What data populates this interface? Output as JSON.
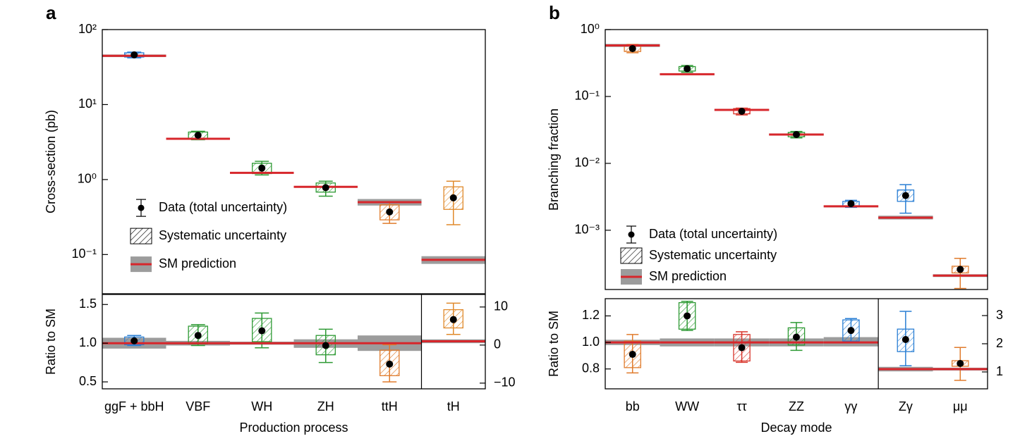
{
  "chart_data": [
    {
      "type": "errorbox",
      "panel": "a",
      "ylabel": "Cross-section (pb)",
      "log_scale": true,
      "ylim": [
        0.03,
        100
      ],
      "yticks": [
        {
          "value": 100,
          "label": "10²"
        },
        {
          "value": 10,
          "label": "10¹"
        },
        {
          "value": 1,
          "label": "10⁰"
        },
        {
          "value": 0.1,
          "label": "10⁻¹"
        }
      ],
      "legend": "center left",
      "category_colors": [
        "#2a7fd4",
        "#2e9a34",
        "#2e9a34",
        "#2e9a34",
        "#e07b2c",
        "#e08a2c"
      ],
      "series": [
        {
          "name": "Data (total uncertainty)",
          "color": "#000000",
          "values": [
            46,
            3.9,
            1.42,
            0.78,
            0.37,
            0.57
          ],
          "low": [
            42,
            3.4,
            1.15,
            0.6,
            0.26,
            0.25
          ],
          "high": [
            50,
            4.4,
            1.75,
            0.95,
            0.5,
            0.95
          ]
        },
        {
          "name": "Systematic uncertainty",
          "low": [
            43,
            3.5,
            1.2,
            0.68,
            0.29,
            0.4
          ],
          "high": [
            49,
            4.3,
            1.65,
            0.9,
            0.46,
            0.8
          ]
        },
        {
          "name": "SM prediction",
          "color": "#d7262b",
          "band_color": "#9c9c9c",
          "values": [
            44.7,
            3.5,
            1.23,
            0.8,
            0.5,
            0.085
          ],
          "low": [
            43,
            3.4,
            1.2,
            0.78,
            0.45,
            0.075
          ],
          "high": [
            46.5,
            3.6,
            1.26,
            0.82,
            0.55,
            0.095
          ]
        }
      ]
    },
    {
      "type": "errorbox",
      "ylabel": "Ratio to SM",
      "xlabel": "Production process",
      "categories": [
        "ggF + bbH",
        "VBF",
        "WH",
        "ZH",
        "ttH",
        "tH"
      ],
      "category_axis": [
        "y",
        "y",
        "y",
        "y",
        "y",
        "y2"
      ],
      "ylim": [
        0.41,
        1.63
      ],
      "yticks": [
        0.5,
        {
          "value": 1,
          "label": "1.0"
        },
        1.5
      ],
      "y2lim": [
        -11.5,
        13.3
      ],
      "y2ticks": [
        {
          "value": -10,
          "label": "−10"
        },
        0,
        10
      ],
      "category_colors": [
        "#2a7fd4",
        "#2e9a34",
        "#2e9a34",
        "#2e9a34",
        "#e07b2c",
        "#e08a2c"
      ],
      "series": [
        {
          "color": "#000000",
          "values": [
            1.03,
            1.1,
            1.16,
            0.97,
            0.73,
            6.7
          ],
          "low": [
            0.97,
            0.97,
            0.94,
            0.75,
            0.5,
            2.8
          ],
          "high": [
            1.1,
            1.24,
            1.39,
            1.18,
            0.98,
            11
          ]
        },
        {
          "low": [
            0.98,
            0.99,
            1.02,
            0.85,
            0.58,
            4.5
          ],
          "high": [
            1.08,
            1.22,
            1.32,
            1.1,
            0.91,
            9.3
          ]
        },
        {
          "color": "#d7262b",
          "band_color": "#9c9c9c",
          "values": [
            1,
            1,
            1,
            1,
            1,
            1
          ],
          "low": [
            0.93,
            0.97,
            0.98,
            0.94,
            0.9,
            0.5
          ],
          "high": [
            1.07,
            1.03,
            1.02,
            1.05,
            1.1,
            1.5
          ]
        }
      ]
    },
    {
      "type": "errorbox",
      "panel": "b",
      "ylabel": "Branching fraction",
      "log_scale": true,
      "ylim": [
        0.00013,
        1
      ],
      "yticks": [
        {
          "value": 1,
          "label": "10⁰"
        },
        {
          "value": 0.1,
          "label": "10⁻¹"
        },
        {
          "value": 0.01,
          "label": "10⁻²"
        },
        {
          "value": 0.001,
          "label": "10⁻³"
        }
      ],
      "legend": "lower left",
      "category_colors": [
        "#e07b2c",
        "#2e9a34",
        "#d8352b",
        "#2e9a34",
        "#2a7fd4",
        "#2a7fd4",
        "#e07b2c"
      ],
      "series": [
        {
          "name": "Data (total uncertainty)",
          "color": "#000000",
          "values": [
            0.52,
            0.26,
            0.06,
            0.027,
            0.0025,
            0.0033,
            0.00026
          ],
          "low": [
            0.45,
            0.23,
            0.053,
            0.024,
            0.0022,
            0.0018,
            0.000135
          ],
          "high": [
            0.6,
            0.29,
            0.067,
            0.03,
            0.0028,
            0.0048,
            0.00038
          ]
        },
        {
          "name": "Systematic uncertainty",
          "low": [
            0.47,
            0.24,
            0.055,
            0.025,
            0.0023,
            0.0027,
            0.00023
          ],
          "high": [
            0.59,
            0.28,
            0.066,
            0.029,
            0.0027,
            0.004,
            0.00029
          ]
        },
        {
          "name": "SM prediction",
          "color": "#d7262b",
          "band_color": "#9c9c9c",
          "values": [
            0.58,
            0.215,
            0.063,
            0.027,
            0.00228,
            0.00154,
            0.00021
          ],
          "low": [
            0.55,
            0.21,
            0.061,
            0.026,
            0.0022,
            0.00145,
            0.0002
          ],
          "high": [
            0.61,
            0.22,
            0.065,
            0.028,
            0.00235,
            0.00165,
            0.00022
          ]
        }
      ]
    },
    {
      "type": "errorbox",
      "ylabel": "Ratio to SM",
      "xlabel": "Decay mode",
      "categories": [
        "bb",
        "WW",
        "ττ",
        "ZZ",
        "γγ",
        "Zγ",
        "μμ"
      ],
      "category_axis": [
        "y",
        "y",
        "y",
        "y",
        "y",
        "y2",
        "y2"
      ],
      "ylim": [
        0.65,
        1.33
      ],
      "yticks": [
        0.8,
        {
          "value": 1,
          "label": "1.0"
        },
        1.2
      ],
      "y2lim": [
        0.4,
        3.6
      ],
      "y2ticks": [
        1,
        2,
        3
      ],
      "category_colors": [
        "#e07b2c",
        "#2e9a34",
        "#d8352b",
        "#2e9a34",
        "#2a7fd4",
        "#2a7fd4",
        "#e07b2c"
      ],
      "series": [
        {
          "color": "#000000",
          "values": [
            0.91,
            1.2,
            0.96,
            1.04,
            1.09,
            2.15,
            1.3
          ],
          "low": [
            0.77,
            1.09,
            0.85,
            0.94,
            1.0,
            1.22,
            0.7
          ],
          "high": [
            1.06,
            1.31,
            1.08,
            1.15,
            1.18,
            3.15,
            1.87
          ]
        },
        {
          "low": [
            0.81,
            1.1,
            0.86,
            0.98,
            1.01,
            1.72,
            1.2
          ],
          "high": [
            1.01,
            1.3,
            1.06,
            1.11,
            1.17,
            2.52,
            1.4
          ]
        },
        {
          "color": "#d7262b",
          "band_color": "#9c9c9c",
          "values": [
            1,
            1,
            1,
            1,
            1,
            1.1,
            1.1
          ],
          "low": [
            0.98,
            0.97,
            0.97,
            0.97,
            0.97,
            1.02,
            1.05
          ],
          "high": [
            1.02,
            1.03,
            1.03,
            1.03,
            1.04,
            1.18,
            1.15
          ]
        }
      ]
    }
  ]
}
